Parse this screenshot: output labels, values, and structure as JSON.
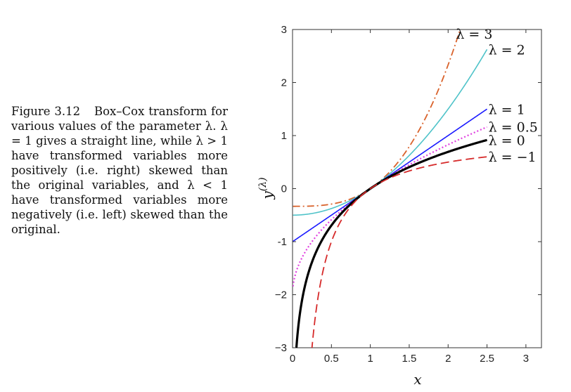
{
  "caption": {
    "label": "Figure 3.12",
    "text": "Box–Cox transform for various values of the parameter λ. λ = 1 gives a straight line, while λ > 1 have transformed variables more positively (i.e. right) skewed than the original variables, and λ < 1 have transformed variables more negatively (i.e. left) skewed than the original."
  },
  "chart_data": {
    "type": "line",
    "title": "",
    "xlabel": "x",
    "ylabel": "y(λ)",
    "xlim": [
      0,
      3.2
    ],
    "ylim": [
      -3,
      3
    ],
    "xticks": [
      0,
      0.5,
      1,
      1.5,
      2,
      2.5,
      3
    ],
    "yticks": [
      -3,
      -2,
      -1,
      0,
      1,
      2,
      3
    ],
    "xtick_labels": [
      "0",
      "0.5",
      "1",
      "1.5",
      "2",
      "2.5",
      "3"
    ],
    "ytick_labels": [
      "−3",
      "−2",
      "-1",
      "0",
      "1",
      "2",
      "3"
    ],
    "grid": false,
    "x_domain": [
      0,
      2.5
    ],
    "series": [
      {
        "name": "λ = 3",
        "lambda": 3,
        "color": "#d9622b",
        "dash": "dashdot"
      },
      {
        "name": "λ = 2",
        "lambda": 2,
        "color": "#4fc3c9",
        "dash": "solid"
      },
      {
        "name": "λ = 1",
        "lambda": 1,
        "color": "#1a1aff",
        "dash": "solid"
      },
      {
        "name": "λ = 0.5",
        "lambda": 0.5,
        "color": "#e040e0",
        "dash": "dotted"
      },
      {
        "name": "λ = 0",
        "lambda": 0,
        "color": "#000000",
        "dash": "solid-thick"
      },
      {
        "name": "λ = −1",
        "lambda": -1,
        "color": "#d62a2a",
        "dash": "dashed"
      }
    ]
  }
}
